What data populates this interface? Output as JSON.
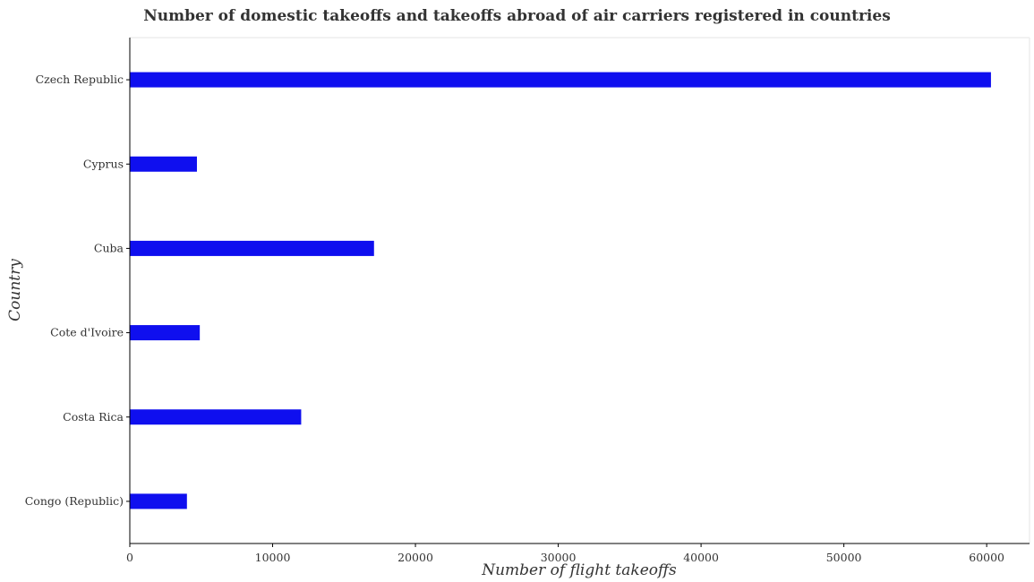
{
  "chart_data": {
    "type": "bar",
    "orientation": "horizontal",
    "title": "Number of domestic takeoffs and takeoffs abroad of air carriers registered in countries",
    "xlabel": "Number of flight takeoffs",
    "ylabel": "Country",
    "categories": [
      "Congo (Republic)",
      "Costa Rica",
      "Cote d'Ivoire",
      "Cuba",
      "Cyprus",
      "Czech Republic"
    ],
    "values": [
      4000,
      12000,
      4900,
      17100,
      4700,
      60300
    ],
    "xlim": [
      0,
      63000
    ],
    "xticks": [
      0,
      10000,
      20000,
      30000,
      40000,
      50000,
      60000
    ],
    "xtick_labels": [
      "0",
      "10000",
      "20000",
      "30000",
      "40000",
      "50000",
      "60000"
    ],
    "grid": false,
    "colors": {
      "bar": "#0f0fef",
      "axis": "#000000",
      "background": "#ffffff"
    }
  }
}
